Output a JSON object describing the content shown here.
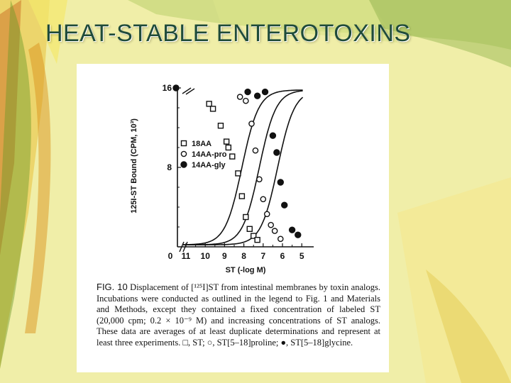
{
  "slide": {
    "title": "HEAT-STABLE ENTEROTOXINS"
  },
  "theme": {
    "background": "#f0eea8",
    "title_color": "#1f4b3a",
    "leaf_colors": [
      "#e0a81a",
      "#5a8b1e",
      "#c7732b",
      "#f3e96a"
    ]
  },
  "caption": {
    "fig_number": "FIG. 10",
    "text": "Displacement of [¹²⁵I]ST from intestinal membranes by toxin analogs. Incubations were conducted as outlined in the legend to Fig. 1 and Materials and Methods, except they contained a fixed concentration of labeled ST (20,000 cpm; 0.2 × 10⁻⁹ M) and increasing concentrations of ST analogs. These data are averages of at least duplicate determinations and represent at least three experiments. □, ST; ○, ST[5–18]proline; ●, ST[5–18]glycine."
  },
  "chart_data": {
    "type": "scatter",
    "xlabel": "ST (-log M)",
    "ylabel": "125I-ST Bound (CPM, 10³)",
    "x_ticks": [
      "0",
      "11",
      "10",
      "9",
      "8",
      "7",
      "6",
      "5"
    ],
    "y_ticks": [
      "16",
      "8"
    ],
    "x_reversed": true,
    "x_axis_break": true,
    "ylim": [
      0,
      16.5
    ],
    "xlim": [
      11,
      4.5
    ],
    "legend_position": "left-middle",
    "series": [
      {
        "name": "18AA",
        "marker": "open-square",
        "points": [
          [
            9.8,
            14.4
          ],
          [
            9.6,
            13.9
          ],
          [
            9.2,
            12.2
          ],
          [
            8.9,
            10.6
          ],
          [
            8.8,
            10.0
          ],
          [
            8.6,
            9.1
          ],
          [
            8.3,
            7.4
          ],
          [
            8.1,
            5.1
          ],
          [
            7.9,
            3.0
          ],
          [
            7.7,
            1.8
          ],
          [
            7.5,
            1.1
          ],
          [
            7.3,
            0.7
          ]
        ],
        "curve": {
          "ic50": 8.1,
          "slope": 1.0,
          "top": 15.8,
          "bottom": 0.2
        }
      },
      {
        "name": "14AA-pro",
        "marker": "open-circle",
        "points": [
          [
            8.2,
            15.1
          ],
          [
            7.9,
            14.7
          ],
          [
            7.6,
            12.4
          ],
          [
            7.4,
            9.7
          ],
          [
            7.2,
            6.8
          ],
          [
            7.0,
            4.8
          ],
          [
            6.8,
            3.3
          ],
          [
            6.6,
            2.2
          ],
          [
            6.4,
            1.6
          ],
          [
            6.1,
            0.8
          ]
        ],
        "curve": {
          "ic50": 7.2,
          "slope": 1.0,
          "top": 15.8,
          "bottom": 0.2
        }
      },
      {
        "name": "14AA-gly",
        "marker": "filled-circle",
        "points": [
          [
            11.4,
            16.0
          ],
          [
            7.8,
            15.6
          ],
          [
            7.3,
            15.2
          ],
          [
            6.9,
            15.6
          ],
          [
            6.5,
            11.2
          ],
          [
            6.3,
            9.5
          ],
          [
            6.1,
            6.5
          ],
          [
            5.9,
            4.2
          ],
          [
            5.5,
            1.7
          ],
          [
            5.2,
            1.2
          ]
        ],
        "curve": {
          "ic50": 6.25,
          "slope": 1.0,
          "top": 15.8,
          "bottom": 0.2
        }
      }
    ]
  }
}
